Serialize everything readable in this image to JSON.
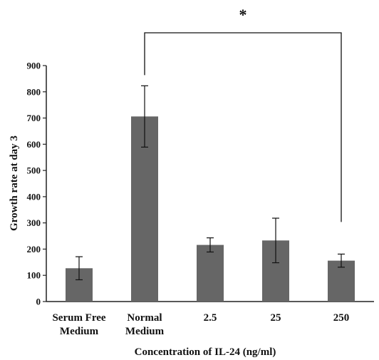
{
  "chart_data": {
    "type": "bar",
    "title": "",
    "categories": [
      [
        "Serum Free",
        "Medium"
      ],
      [
        "Normal",
        "Medium"
      ],
      [
        "2.5"
      ],
      [
        "25"
      ],
      [
        "250"
      ]
    ],
    "values": [
      127,
      706,
      216,
      233,
      156
    ],
    "error": [
      44,
      117,
      27,
      85,
      25
    ],
    "xlabel": "Concentration of IL-24 (ng/ml)",
    "ylabel": "Growth rate at day 3",
    "ylim": [
      0,
      900
    ],
    "yticks": [
      0,
      100,
      200,
      300,
      400,
      500,
      600,
      700,
      800,
      900
    ],
    "grid": false,
    "bar_color": "#666666",
    "significance": {
      "from_category": 1,
      "to_category": 4,
      "label": "*"
    }
  }
}
